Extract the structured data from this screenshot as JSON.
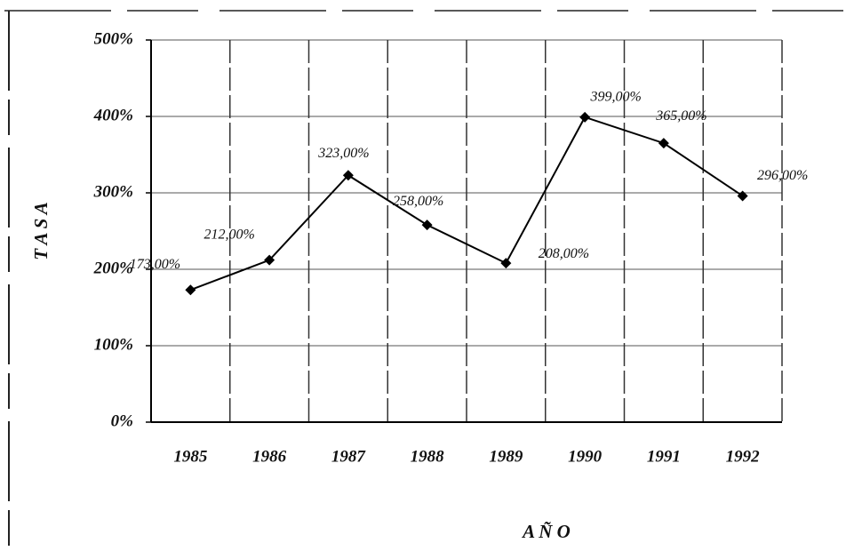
{
  "chart_data": {
    "type": "line",
    "categories": [
      "1985",
      "1986",
      "1987",
      "1988",
      "1989",
      "1990",
      "1991",
      "1992"
    ],
    "series": [
      {
        "name": null,
        "color": "#000000",
        "values": [
          173,
          212,
          323,
          258,
          208,
          399,
          365,
          296
        ],
        "value_labels": [
          "173,00%",
          "212,00%",
          "323,00%",
          "258,00%",
          "208,00%",
          "399,00%",
          "365,00%",
          "296,00%"
        ]
      }
    ],
    "ylim": [
      0,
      500
    ],
    "yticks": [
      {
        "value": 0,
        "label": "0%"
      },
      {
        "value": 100,
        "label": "100%"
      },
      {
        "value": 200,
        "label": "200%"
      },
      {
        "value": 300,
        "label": "300%"
      },
      {
        "value": 400,
        "label": "400%"
      },
      {
        "value": 500,
        "label": "500%"
      }
    ],
    "x_label": "A Ñ O",
    "y_label": "T A S A",
    "grid": true
  }
}
